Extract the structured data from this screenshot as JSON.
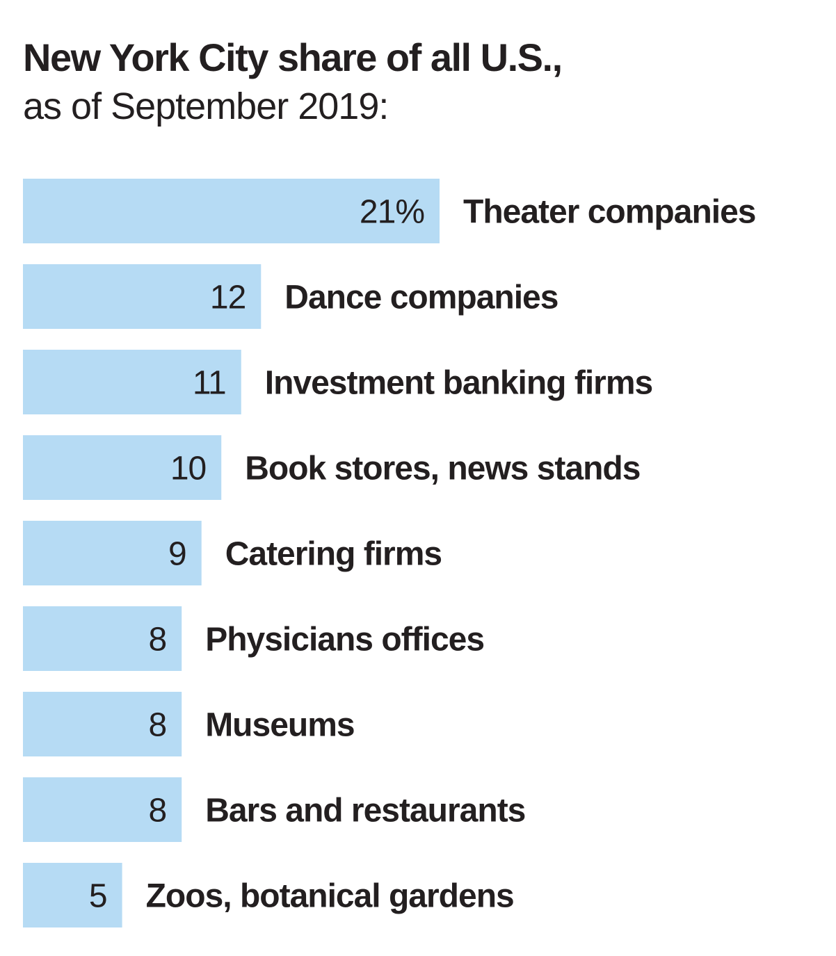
{
  "chart_data": {
    "type": "bar",
    "orientation": "horizontal",
    "title": "New York City share of all U.S.,",
    "subtitle": "as of September 2019:",
    "xlabel": "",
    "ylabel": "",
    "unit": "%",
    "xlim": [
      0,
      21
    ],
    "grid": false,
    "bar_color": "#b6dbf4",
    "categories": [
      "Theater companies",
      "Dance companies",
      "Investment banking firms",
      "Book stores, news stands",
      "Catering firms",
      "Physicians offices",
      "Museums",
      "Bars and restaurants",
      "Zoos, botanical gardens"
    ],
    "values": [
      21,
      12,
      11,
      10,
      9,
      8,
      8,
      8,
      5
    ],
    "value_labels": [
      "21%",
      "12",
      "11",
      "10",
      "9",
      "8",
      "8",
      "8",
      "5"
    ]
  }
}
